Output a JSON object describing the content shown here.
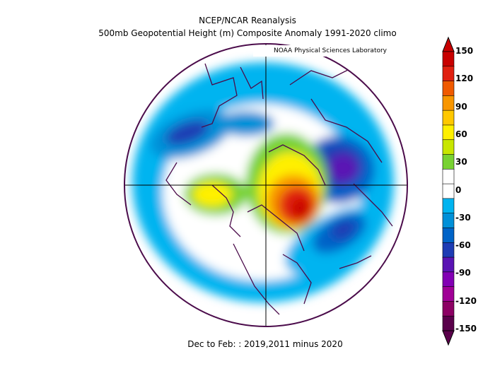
{
  "title_line1": "NCEP/NCAR Reanalysis",
  "title_line2": "500mb Geopotential Height (m) Composite Anomaly 1991-2020 climo",
  "credit": "NOAA Physical Sciences Laboratory",
  "footer": "Dec to Feb: : 2019,2011 minus 2020",
  "colorbar": {
    "labels": [
      "150",
      "120",
      "90",
      "60",
      "30",
      "0",
      "-30",
      "-60",
      "-90",
      "-120",
      "-150"
    ],
    "colors": [
      "#c80000",
      "#e02010",
      "#f05a00",
      "#f89600",
      "#ffc800",
      "#fff000",
      "#c8e600",
      "#78d232",
      "#ffffff",
      "#ffffff",
      "#00b4f0",
      "#0090d8",
      "#0064c8",
      "#1e3cb4",
      "#5a14b4",
      "#8200b4",
      "#a00096",
      "#8c0064",
      "#5a004b"
    ]
  },
  "map": {
    "projection": "north-polar-stereographic",
    "variable": "500mb geopotential height anomaly",
    "units": "m"
  }
}
